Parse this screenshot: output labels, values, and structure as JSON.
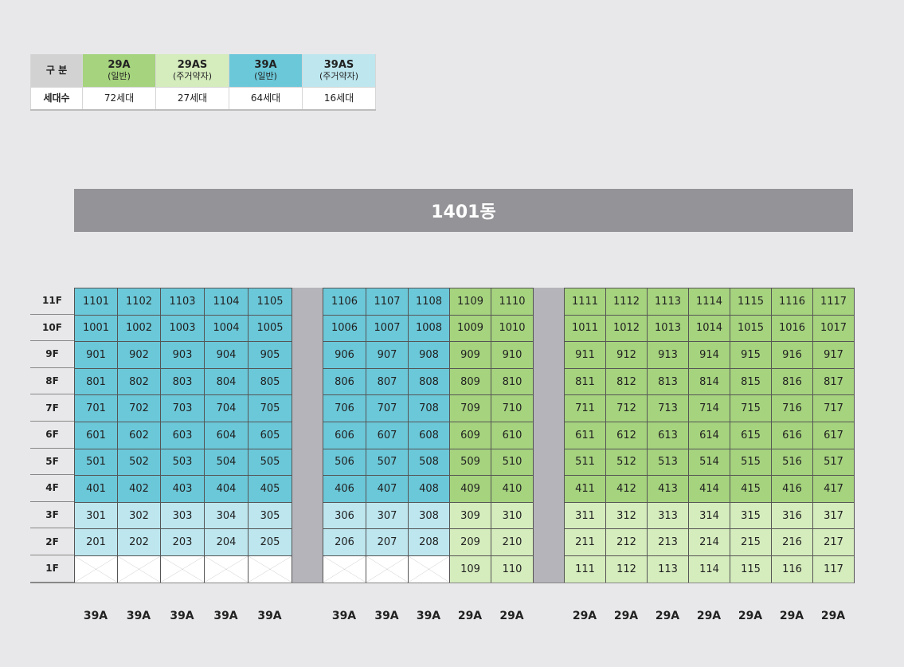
{
  "legend": {
    "header_label": "구 분",
    "count_label": "세대수",
    "types": [
      {
        "name": "29A",
        "sub": "(일반)",
        "count": "72세대",
        "color": "#a6d37e"
      },
      {
        "name": "29AS",
        "sub": "(주거약자)",
        "count": "27세대",
        "color": "#d5ecbd"
      },
      {
        "name": "39A",
        "sub": "(일반)",
        "count": "64세대",
        "color": "#6bc8d9"
      },
      {
        "name": "39AS",
        "sub": "(주거약자)",
        "count": "16세대",
        "color": "#bde6ef"
      }
    ]
  },
  "building": {
    "title": "1401동"
  },
  "floors": [
    "11F",
    "10F",
    "9F",
    "8F",
    "7F",
    "6F",
    "5F",
    "4F",
    "3F",
    "2F",
    "1F"
  ],
  "colors": {
    "39A": "#6bc8d9",
    "39AS": "#bde6ef",
    "29A": "#a6d37e",
    "29AS": "#d5ecbd",
    "gap": "#b4b4ba",
    "empty": "#ffffff"
  },
  "columns": [
    "39A",
    "39A",
    "39A",
    "39A",
    "39A",
    "39A",
    "39A",
    "39A",
    "29A",
    "29A",
    "29A",
    "29A",
    "29A",
    "29A",
    "29A",
    "29A",
    "29A"
  ],
  "units": {
    "11F": [
      "1101",
      "1102",
      "1103",
      "1104",
      "1105",
      "1106",
      "1107",
      "1108",
      "1109",
      "1110",
      "1111",
      "1112",
      "1113",
      "1114",
      "1115",
      "1116",
      "1117"
    ],
    "10F": [
      "1001",
      "1002",
      "1003",
      "1004",
      "1005",
      "1006",
      "1007",
      "1008",
      "1009",
      "1010",
      "1011",
      "1012",
      "1013",
      "1014",
      "1015",
      "1016",
      "1017"
    ],
    "9F": [
      "901",
      "902",
      "903",
      "904",
      "905",
      "906",
      "907",
      "908",
      "909",
      "910",
      "911",
      "912",
      "913",
      "914",
      "915",
      "916",
      "917"
    ],
    "8F": [
      "801",
      "802",
      "803",
      "804",
      "805",
      "806",
      "807",
      "808",
      "809",
      "810",
      "811",
      "812",
      "813",
      "814",
      "815",
      "816",
      "817"
    ],
    "7F": [
      "701",
      "702",
      "703",
      "704",
      "705",
      "706",
      "707",
      "708",
      "709",
      "710",
      "711",
      "712",
      "713",
      "714",
      "715",
      "716",
      "717"
    ],
    "6F": [
      "601",
      "602",
      "603",
      "604",
      "605",
      "606",
      "607",
      "608",
      "609",
      "610",
      "611",
      "612",
      "613",
      "614",
      "615",
      "616",
      "617"
    ],
    "5F": [
      "501",
      "502",
      "503",
      "504",
      "505",
      "506",
      "507",
      "508",
      "509",
      "510",
      "511",
      "512",
      "513",
      "514",
      "515",
      "516",
      "517"
    ],
    "4F": [
      "401",
      "402",
      "403",
      "404",
      "405",
      "406",
      "407",
      "408",
      "409",
      "410",
      "411",
      "412",
      "413",
      "414",
      "415",
      "416",
      "417"
    ],
    "3F": [
      "301",
      "302",
      "303",
      "304",
      "305",
      "306",
      "307",
      "308",
      "309",
      "310",
      "311",
      "312",
      "313",
      "314",
      "315",
      "316",
      "317"
    ],
    "2F": [
      "201",
      "202",
      "203",
      "204",
      "205",
      "206",
      "207",
      "208",
      "209",
      "210",
      "211",
      "212",
      "213",
      "214",
      "215",
      "216",
      "217"
    ],
    "1F": [
      "",
      "",
      "",
      "",
      "",
      "",
      "",
      "",
      "109",
      "110",
      "111",
      "112",
      "113",
      "114",
      "115",
      "116",
      "117"
    ]
  },
  "unit_types": {
    "11F": [
      "39A",
      "39A",
      "39A",
      "39A",
      "39A",
      "39A",
      "39A",
      "39A",
      "29A",
      "29A",
      "29A",
      "29A",
      "29A",
      "29A",
      "29A",
      "29A",
      "29A"
    ],
    "10F": [
      "39A",
      "39A",
      "39A",
      "39A",
      "39A",
      "39A",
      "39A",
      "39A",
      "29A",
      "29A",
      "29A",
      "29A",
      "29A",
      "29A",
      "29A",
      "29A",
      "29A"
    ],
    "9F": [
      "39A",
      "39A",
      "39A",
      "39A",
      "39A",
      "39A",
      "39A",
      "39A",
      "29A",
      "29A",
      "29A",
      "29A",
      "29A",
      "29A",
      "29A",
      "29A",
      "29A"
    ],
    "8F": [
      "39A",
      "39A",
      "39A",
      "39A",
      "39A",
      "39A",
      "39A",
      "39A",
      "29A",
      "29A",
      "29A",
      "29A",
      "29A",
      "29A",
      "29A",
      "29A",
      "29A"
    ],
    "7F": [
      "39A",
      "39A",
      "39A",
      "39A",
      "39A",
      "39A",
      "39A",
      "39A",
      "29A",
      "29A",
      "29A",
      "29A",
      "29A",
      "29A",
      "29A",
      "29A",
      "29A"
    ],
    "6F": [
      "39A",
      "39A",
      "39A",
      "39A",
      "39A",
      "39A",
      "39A",
      "39A",
      "29A",
      "29A",
      "29A",
      "29A",
      "29A",
      "29A",
      "29A",
      "29A",
      "29A"
    ],
    "5F": [
      "39A",
      "39A",
      "39A",
      "39A",
      "39A",
      "39A",
      "39A",
      "39A",
      "29A",
      "29A",
      "29A",
      "29A",
      "29A",
      "29A",
      "29A",
      "29A",
      "29A"
    ],
    "4F": [
      "39A",
      "39A",
      "39A",
      "39A",
      "39A",
      "39A",
      "39A",
      "39A",
      "29A",
      "29A",
      "29A",
      "29A",
      "29A",
      "29A",
      "29A",
      "29A",
      "29A"
    ],
    "3F": [
      "39AS",
      "39AS",
      "39AS",
      "39AS",
      "39AS",
      "39AS",
      "39AS",
      "39AS",
      "29AS",
      "29AS",
      "29AS",
      "29AS",
      "29AS",
      "29AS",
      "29AS",
      "29AS",
      "29AS"
    ],
    "2F": [
      "39AS",
      "39AS",
      "39AS",
      "39AS",
      "39AS",
      "39AS",
      "39AS",
      "39AS",
      "29AS",
      "29AS",
      "29AS",
      "29AS",
      "29AS",
      "29AS",
      "29AS",
      "29AS",
      "29AS"
    ],
    "1F": [
      "none",
      "none",
      "none",
      "none",
      "none",
      "none",
      "none",
      "none",
      "29AS",
      "29AS",
      "29AS",
      "29AS",
      "29AS",
      "29AS",
      "29AS",
      "29AS",
      "29AS"
    ]
  }
}
